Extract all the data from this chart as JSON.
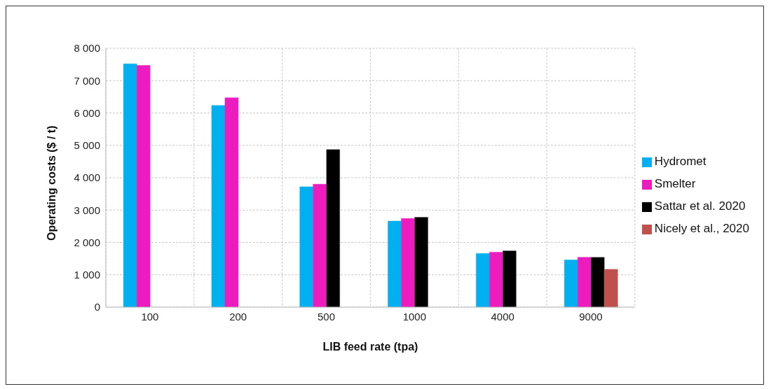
{
  "chart_data": {
    "type": "bar",
    "xlabel": "LIB feed rate (tpa)",
    "ylabel": "Operating costs ($ / t)",
    "categories": [
      "100",
      "200",
      "500",
      "1000",
      "4000",
      "9000"
    ],
    "series": [
      {
        "name": "Hydromet",
        "color": "#00b0f0",
        "values": [
          7520,
          6230,
          3720,
          2660,
          1660,
          1460
        ]
      },
      {
        "name": "Smelter",
        "color": "#ec1cbf",
        "values": [
          7470,
          6470,
          3800,
          2740,
          1700,
          1540
        ]
      },
      {
        "name": "Sattar et al. 2020",
        "color": "#000000",
        "values": [
          null,
          null,
          4870,
          2780,
          1740,
          1540
        ]
      },
      {
        "name": "Nicely et al., 2020",
        "color": "#c0504d",
        "values": [
          null,
          null,
          null,
          null,
          null,
          1170
        ]
      }
    ],
    "ylim": [
      0,
      8000
    ],
    "yticks": [
      0,
      {
        "value": 1000,
        "label": "1 000"
      },
      {
        "value": 2000,
        "label": "2 000"
      },
      {
        "value": 3000,
        "label": "3 000"
      },
      {
        "value": 4000,
        "label": "4 000"
      },
      {
        "value": 5000,
        "label": "5 000"
      },
      {
        "value": 6000,
        "label": "6 000"
      },
      {
        "value": 7000,
        "label": "7 000"
      },
      {
        "value": 8000,
        "label": "8 000"
      }
    ],
    "grid": true,
    "legend": "right"
  }
}
